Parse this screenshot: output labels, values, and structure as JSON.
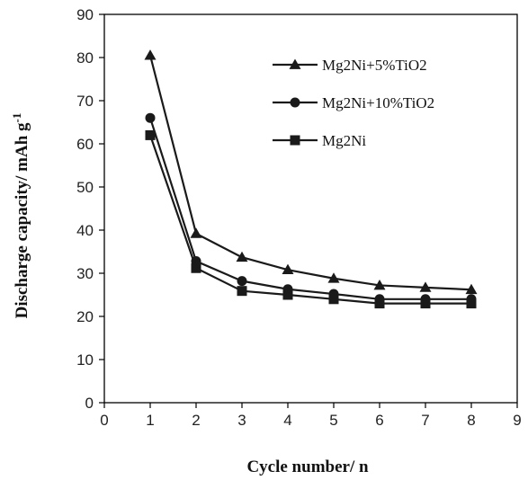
{
  "chart_data": {
    "type": "line",
    "title": "",
    "xlabel": "Cycle number/ n",
    "ylabel": "Discharge capacity/ mAh g",
    "ylabel_superscript": "-1",
    "xlim": [
      0,
      9
    ],
    "ylim": [
      0,
      90
    ],
    "xticks": [
      "0",
      "1",
      "2",
      "3",
      "4",
      "5",
      "6",
      "7",
      "8",
      "9"
    ],
    "yticks": [
      "0",
      "10",
      "20",
      "30",
      "40",
      "50",
      "60",
      "70",
      "80",
      "90"
    ],
    "grid": false,
    "legend_position": "top-right",
    "x": [
      1,
      2,
      3,
      4,
      5,
      6,
      7,
      8
    ],
    "series": [
      {
        "name": "Mg2Ni+5%TiO2",
        "marker": "triangle",
        "values": [
          80.5,
          39.2,
          33.7,
          30.8,
          28.8,
          27.2,
          26.7,
          26.2
        ]
      },
      {
        "name": "Mg2Ni+10%TiO2",
        "marker": "circle",
        "values": [
          66,
          32.8,
          28.2,
          26.3,
          25.2,
          24.0,
          24.0,
          24.0
        ]
      },
      {
        "name": "Mg2Ni",
        "marker": "square",
        "values": [
          62,
          31.2,
          25.9,
          25.0,
          24.0,
          23.0,
          23.0,
          23.0
        ]
      }
    ],
    "colors": {
      "line": "#1a1a1a",
      "axis": "#000000"
    }
  }
}
